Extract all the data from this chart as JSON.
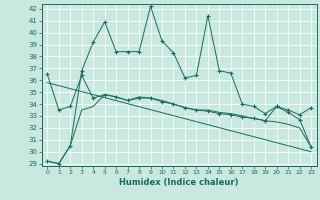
{
  "xlabel": "Humidex (Indice chaleur)",
  "background_color": "#c8e8e0",
  "grid_color": "#ffffff",
  "line_color": "#1a6b5a",
  "xlim": [
    -0.5,
    23.5
  ],
  "ylim": [
    28.8,
    42.4
  ],
  "xticks": [
    0,
    1,
    2,
    3,
    4,
    5,
    6,
    7,
    8,
    9,
    10,
    11,
    12,
    13,
    14,
    15,
    16,
    17,
    18,
    19,
    20,
    21,
    22,
    23
  ],
  "yticks": [
    29,
    30,
    31,
    32,
    33,
    34,
    35,
    36,
    37,
    38,
    39,
    40,
    41,
    42
  ],
  "series1_x": [
    0,
    1,
    2,
    3,
    4,
    5,
    6,
    7,
    8,
    9,
    10,
    11,
    12,
    13,
    14,
    15,
    16,
    17,
    18,
    19,
    20,
    21,
    22,
    23
  ],
  "series1_y": [
    29.2,
    29.0,
    30.5,
    36.8,
    39.2,
    40.9,
    38.4,
    38.4,
    38.4,
    42.2,
    39.3,
    38.3,
    36.2,
    36.4,
    41.4,
    36.8,
    36.6,
    34.0,
    33.8,
    33.2,
    33.8,
    33.3,
    32.7,
    30.4
  ],
  "series2_x": [
    0,
    1,
    2,
    3,
    4,
    5,
    6,
    7,
    8,
    9,
    10,
    11,
    12,
    13,
    14,
    15,
    16,
    17,
    18,
    19,
    20,
    21,
    22,
    23
  ],
  "series2_y": [
    36.5,
    33.5,
    33.8,
    36.4,
    34.5,
    34.8,
    34.6,
    34.3,
    34.5,
    34.5,
    34.2,
    34.0,
    33.7,
    33.5,
    33.4,
    33.2,
    33.1,
    32.9,
    32.8,
    32.6,
    33.8,
    33.5,
    33.1,
    33.7
  ],
  "series3_x": [
    0,
    1,
    2,
    3,
    4,
    5,
    6,
    7,
    8,
    9,
    10,
    11,
    12,
    13,
    14,
    15,
    16,
    17,
    18,
    19,
    20,
    21,
    22,
    23
  ],
  "series3_y": [
    29.2,
    29.0,
    30.5,
    33.5,
    33.8,
    34.8,
    34.6,
    34.3,
    34.6,
    34.5,
    34.3,
    34.0,
    33.7,
    33.5,
    33.5,
    33.3,
    33.2,
    33.0,
    32.8,
    32.6,
    32.5,
    32.3,
    32.0,
    30.4
  ],
  "series4_x": [
    0,
    23
  ],
  "series4_y": [
    35.8,
    30.0
  ]
}
